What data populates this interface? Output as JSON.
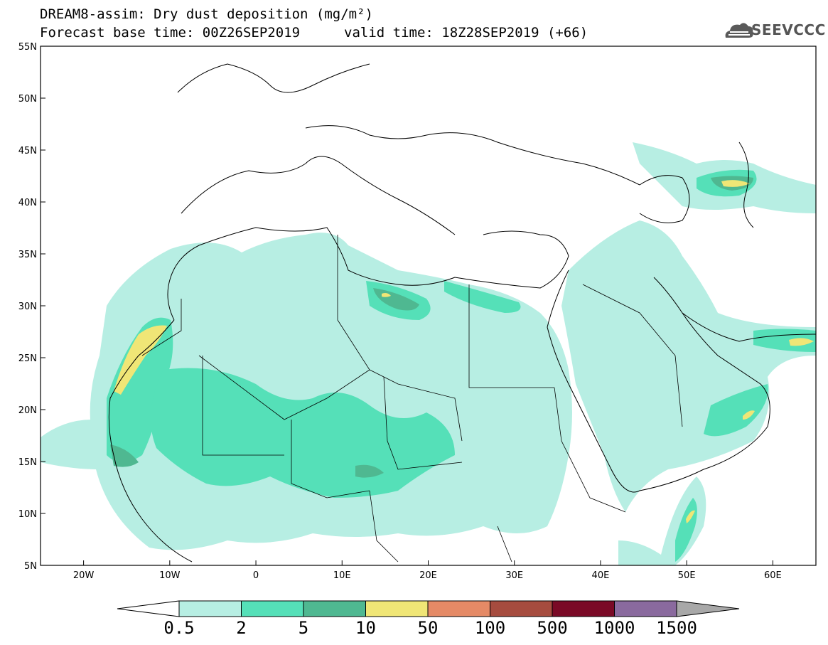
{
  "header": {
    "title_line1": "DREAM8-assim: Dry dust deposition (mg/m²)",
    "title_line2_left": "Forecast base time: 00Z26SEP2019",
    "title_line2_right": "valid time: 18Z28SEP2019 (+66)"
  },
  "logo": {
    "text": "SEEVCCC",
    "icon": "cloud-icon"
  },
  "map": {
    "projection": "lat-lon",
    "lon_range": [
      -25,
      65
    ],
    "lat_range": [
      5,
      55
    ],
    "lat_ticks": [
      "55N",
      "50N",
      "45N",
      "40N",
      "35N",
      "30N",
      "25N",
      "20N",
      "15N",
      "10N",
      "5N"
    ],
    "lon_ticks": [
      "20W",
      "10W",
      "0",
      "10E",
      "20E",
      "30E",
      "40E",
      "50E",
      "60E"
    ]
  },
  "colorbar": {
    "labels": [
      "0.5",
      "2",
      "5",
      "10",
      "50",
      "100",
      "500",
      "1000",
      "1500"
    ],
    "colors": [
      "#b7eee3",
      "#55e0b8",
      "#4fb891",
      "#f0e676",
      "#e58a66",
      "#a64c3f",
      "#7a0a26",
      "#8a6a9e"
    ],
    "under_color": "#ffffff",
    "over_color": "#a8a8a8"
  },
  "legend_levels": {
    "light": "#b7eee3",
    "medium": "#55e0b8",
    "dark": "#4fb891",
    "yellow": "#f0e676"
  }
}
